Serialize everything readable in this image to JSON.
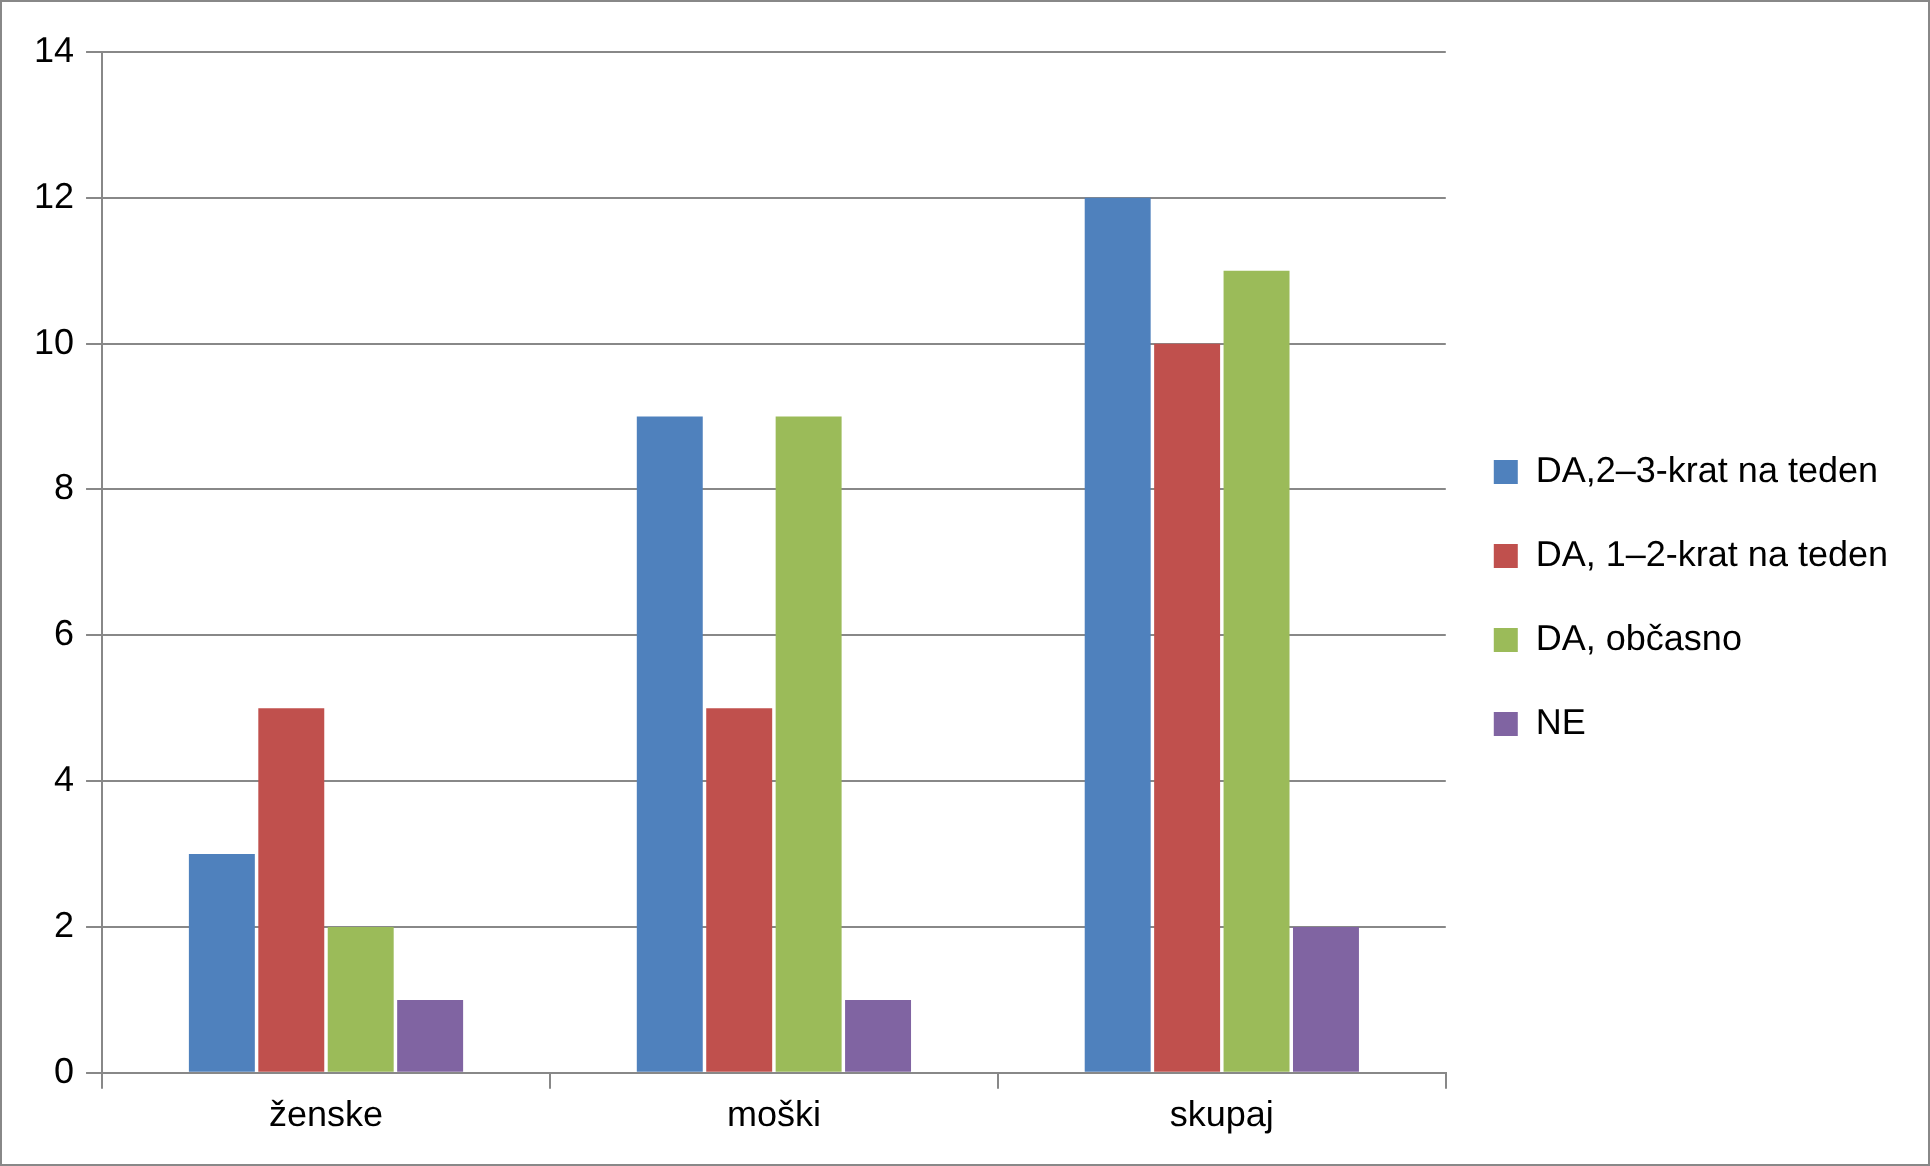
{
  "chart_data": {
    "type": "bar",
    "categories": [
      "ženske",
      "moški",
      "skupaj"
    ],
    "series": [
      {
        "name": "DA,2–3-krat na teden",
        "color": "#4f81bd",
        "values": [
          3,
          9,
          12
        ]
      },
      {
        "name": "DA, 1–2-krat na teden",
        "color": "#c0504d",
        "values": [
          5,
          5,
          10
        ]
      },
      {
        "name": "DA, občasno",
        "color": "#9bbb59",
        "values": [
          2,
          9,
          11
        ]
      },
      {
        "name": "NE",
        "color": "#8064a2",
        "values": [
          1,
          1,
          2
        ]
      }
    ],
    "ylim": [
      0,
      14
    ],
    "yticks": [
      0,
      2,
      4,
      6,
      8,
      10,
      12,
      14
    ],
    "grid": "y",
    "legend": "right"
  }
}
